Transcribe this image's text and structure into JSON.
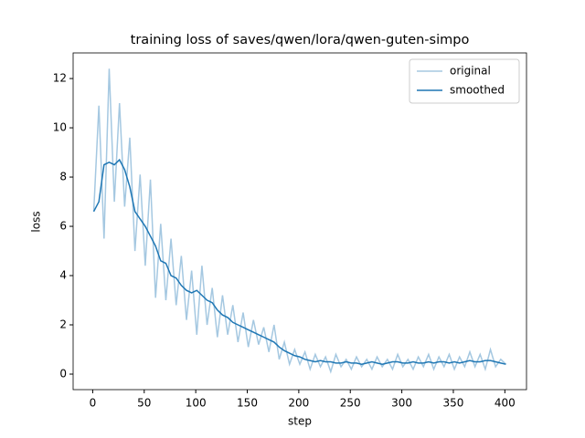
{
  "chart_data": {
    "type": "line",
    "title": "training loss of saves/qwen/lora/qwen-guten-simpo",
    "xlabel": "step",
    "ylabel": "loss",
    "x": [
      1,
      6,
      11,
      16,
      21,
      26,
      31,
      36,
      41,
      46,
      51,
      56,
      61,
      66,
      71,
      76,
      81,
      86,
      91,
      96,
      101,
      106,
      111,
      116,
      121,
      126,
      131,
      136,
      141,
      146,
      151,
      156,
      161,
      166,
      171,
      176,
      181,
      186,
      191,
      196,
      201,
      206,
      211,
      216,
      221,
      226,
      231,
      236,
      241,
      246,
      251,
      256,
      261,
      266,
      271,
      276,
      281,
      286,
      291,
      296,
      301,
      306,
      311,
      316,
      321,
      326,
      331,
      336,
      341,
      346,
      351,
      356,
      361,
      366,
      371,
      376,
      381,
      386,
      391,
      396,
      401
    ],
    "series": [
      {
        "name": "original",
        "color": "#a5c8e1",
        "values": [
          6.6,
          10.9,
          5.5,
          12.4,
          7.0,
          11.0,
          6.8,
          9.6,
          5.0,
          8.1,
          4.4,
          7.9,
          3.1,
          6.1,
          3.0,
          5.5,
          2.8,
          4.8,
          2.2,
          4.2,
          1.6,
          4.4,
          2.0,
          3.5,
          1.5,
          3.2,
          1.6,
          2.8,
          1.3,
          2.5,
          1.1,
          2.2,
          1.2,
          1.9,
          0.9,
          2.0,
          0.6,
          1.3,
          0.4,
          1.0,
          0.4,
          0.9,
          0.2,
          0.8,
          0.3,
          0.7,
          0.1,
          0.8,
          0.3,
          0.6,
          0.2,
          0.7,
          0.3,
          0.6,
          0.2,
          0.7,
          0.3,
          0.6,
          0.2,
          0.8,
          0.3,
          0.6,
          0.2,
          0.7,
          0.3,
          0.8,
          0.2,
          0.7,
          0.3,
          0.8,
          0.2,
          0.7,
          0.3,
          0.9,
          0.3,
          0.8,
          0.2,
          1.0,
          0.3,
          0.6,
          0.4
        ]
      },
      {
        "name": "smoothed",
        "color": "#1f77b4",
        "values": [
          6.6,
          7.0,
          8.5,
          8.6,
          8.5,
          8.7,
          8.3,
          7.6,
          6.6,
          6.3,
          6.0,
          5.6,
          5.2,
          4.6,
          4.5,
          4.0,
          3.9,
          3.6,
          3.4,
          3.3,
          3.4,
          3.2,
          3.0,
          2.9,
          2.6,
          2.4,
          2.3,
          2.1,
          2.0,
          1.9,
          1.8,
          1.7,
          1.6,
          1.5,
          1.4,
          1.3,
          1.1,
          0.95,
          0.85,
          0.75,
          0.7,
          0.6,
          0.55,
          0.5,
          0.55,
          0.5,
          0.5,
          0.45,
          0.45,
          0.5,
          0.45,
          0.45,
          0.4,
          0.45,
          0.5,
          0.45,
          0.4,
          0.45,
          0.5,
          0.5,
          0.45,
          0.45,
          0.5,
          0.45,
          0.45,
          0.5,
          0.45,
          0.5,
          0.5,
          0.45,
          0.5,
          0.45,
          0.5,
          0.55,
          0.5,
          0.5,
          0.55,
          0.55,
          0.5,
          0.45,
          0.4
        ]
      }
    ],
    "xlim": [
      -19,
      421
    ],
    "ylim": [
      -0.63,
      13.04
    ],
    "xticks": [
      0,
      50,
      100,
      150,
      200,
      250,
      300,
      350,
      400
    ],
    "yticks": [
      0,
      2,
      4,
      6,
      8,
      10,
      12
    ],
    "legend": "upper right"
  }
}
